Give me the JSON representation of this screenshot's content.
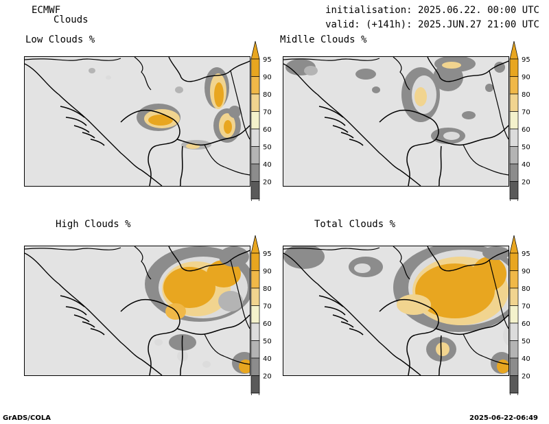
{
  "header": {
    "model": "ECMWF",
    "product": "Clouds",
    "init": "initialisation: 2025.06.22. 00:00 UTC",
    "valid": "valid: (+141h): 2025.JUN.27 21:00 UTC"
  },
  "panels": [
    {
      "title": "Low Clouds %"
    },
    {
      "title": "Midlle Clouds %"
    },
    {
      "title": "High Clouds %"
    },
    {
      "title": "Total Clouds %"
    }
  ],
  "colorbar": {
    "labels": [
      "95",
      "90",
      "80",
      "70",
      "60",
      "50",
      "40",
      "20"
    ],
    "colors": {
      "c95": "#e8a620",
      "c90": "#f0b848",
      "c80": "#f1d48f",
      "c70": "#f4f2cc",
      "c60": "#dcdcdc",
      "c50": "#b4b4b4",
      "c40": "#8c8c8c",
      "c20": "#5a5a5a"
    }
  },
  "footer": {
    "left": "GrADS/COLA",
    "right": "2025-06-22-06:49"
  }
}
